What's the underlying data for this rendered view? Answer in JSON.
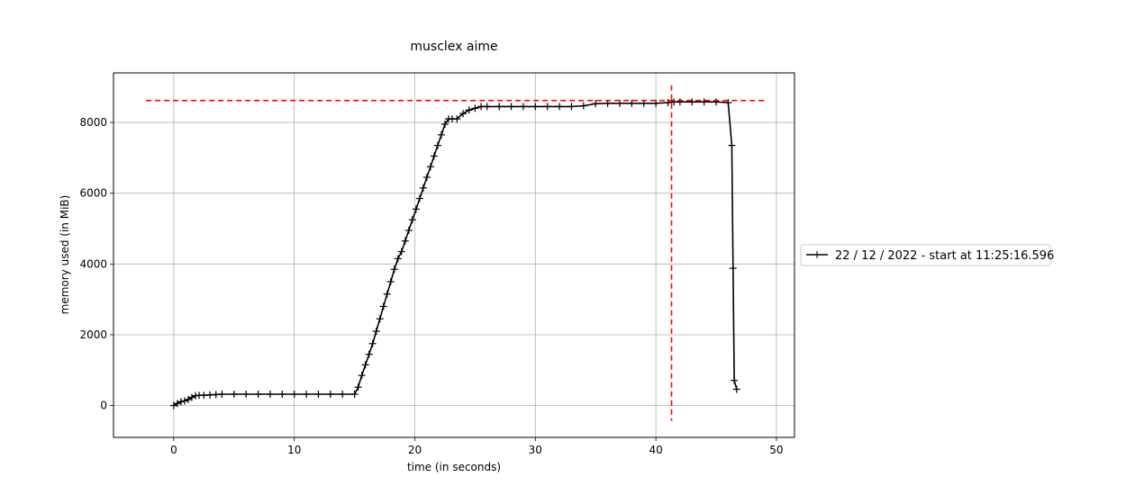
{
  "chart_data": {
    "type": "line",
    "title": "musclex aime",
    "xlabel": "time (in seconds)",
    "ylabel": "memory used (in MiB)",
    "xlim": [
      -5,
      51.5
    ],
    "ylim": [
      -900,
      9400
    ],
    "xticks": [
      0,
      10,
      20,
      30,
      40,
      50
    ],
    "yticks": [
      0,
      2000,
      4000,
      6000,
      8000
    ],
    "grid": true,
    "legend_placement": "right, outside plot",
    "series": [
      {
        "name": "22 / 12 / 2022 - start at 11:25:16.596",
        "color": "#000000",
        "marker": "+",
        "x": [
          0,
          0.3,
          0.6,
          0.9,
          1.2,
          1.5,
          1.8,
          2.1,
          2.5,
          3,
          3.5,
          4,
          5,
          6,
          7,
          8,
          9,
          10,
          11,
          12,
          13,
          14,
          15,
          15.3,
          15.6,
          15.9,
          16.2,
          16.5,
          16.8,
          17.1,
          17.4,
          17.7,
          18,
          18.3,
          18.6,
          18.9,
          19.2,
          19.5,
          19.8,
          20.1,
          20.4,
          20.7,
          21,
          21.3,
          21.6,
          21.9,
          22.2,
          22.5,
          22.8,
          23.1,
          23.5,
          24,
          24.5,
          25,
          25.5,
          26,
          27,
          28,
          29,
          30,
          31,
          32,
          33,
          34,
          35,
          36,
          37,
          38,
          39,
          40,
          41,
          41.5,
          42,
          43,
          44,
          45,
          46,
          46.3,
          46.4,
          46.5,
          46.7
        ],
        "y": [
          0,
          60,
          110,
          130,
          170,
          230,
          280,
          290,
          290,
          300,
          310,
          320,
          320,
          320,
          320,
          320,
          320,
          320,
          320,
          320,
          320,
          320,
          320,
          520,
          850,
          1150,
          1450,
          1750,
          2100,
          2450,
          2800,
          3150,
          3500,
          3850,
          4150,
          4350,
          4650,
          4950,
          5250,
          5550,
          5850,
          6150,
          6450,
          6750,
          7050,
          7350,
          7650,
          7950,
          8100,
          8100,
          8100,
          8250,
          8350,
          8400,
          8450,
          8450,
          8450,
          8450,
          8450,
          8450,
          8450,
          8450,
          8450,
          8470,
          8530,
          8540,
          8540,
          8540,
          8540,
          8540,
          8560,
          8580,
          8580,
          8580,
          8580,
          8580,
          8560,
          7350,
          3880,
          710,
          460
        ]
      }
    ],
    "reference_lines": [
      {
        "orientation": "horizontal",
        "value": 8620,
        "from": -2.3,
        "to": 49,
        "color": "#ff0000",
        "style": "dashed"
      },
      {
        "orientation": "vertical",
        "value": 41.3,
        "from": -430,
        "to": 9050,
        "color": "#ff0000",
        "style": "dashed"
      }
    ]
  }
}
